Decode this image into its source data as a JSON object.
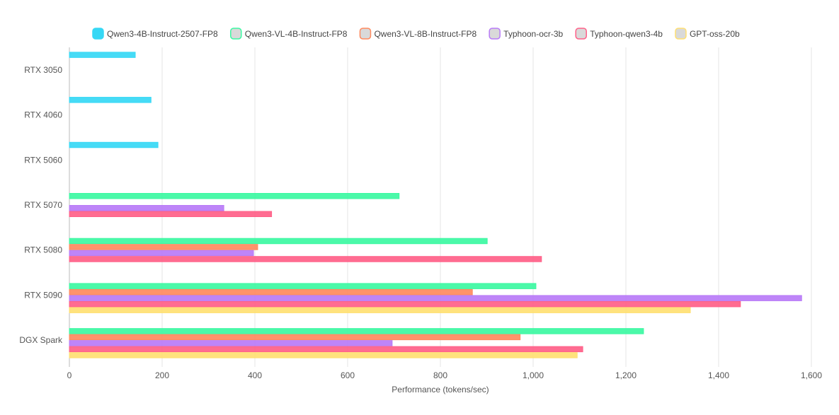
{
  "chart_data": {
    "type": "bar",
    "orientation": "horizontal",
    "title": "",
    "xlabel": "Performance (tokens/sec)",
    "ylabel": "",
    "xlim": [
      0,
      1600
    ],
    "xticks": [
      0,
      200,
      400,
      600,
      800,
      1000,
      1200,
      1400,
      1600
    ],
    "xtick_labels": [
      "0",
      "200",
      "400",
      "600",
      "800",
      "1,000",
      "1,200",
      "1,400",
      "1,600"
    ],
    "grid": true,
    "legend_position": "top-center",
    "categories": [
      "RTX 3050",
      "RTX 4060",
      "RTX 5060",
      "RTX 5070",
      "RTX 5080",
      "RTX 5090",
      "DGX Spark"
    ],
    "series": [
      {
        "name": "Qwen3-4B-Instruct-2507-FP8",
        "color": "#36d8f5",
        "values": [
          142,
          176,
          191,
          null,
          null,
          null,
          null
        ]
      },
      {
        "name": "Qwen3-VL-4B-Instruct-FP8",
        "color": "#3cf8a2",
        "values": [
          null,
          null,
          null,
          711,
          901,
          1006,
          1238
        ]
      },
      {
        "name": "Qwen3-VL-8B-Instruct-FP8",
        "color": "#ff8a5e",
        "values": [
          null,
          null,
          null,
          null,
          406,
          869,
          972
        ]
      },
      {
        "name": "Typhoon-ocr-3b",
        "color": "#b87bf7",
        "values": [
          null,
          null,
          null,
          333,
          397,
          1579,
          696
        ]
      },
      {
        "name": "Typhoon-qwen3-4b",
        "color": "#ff6088",
        "values": [
          null,
          null,
          null,
          436,
          1018,
          1447,
          1107
        ]
      },
      {
        "name": "GPT-oss-20b",
        "color": "#ffdf72",
        "values": [
          null,
          null,
          null,
          null,
          null,
          1339,
          1095
        ]
      }
    ]
  }
}
